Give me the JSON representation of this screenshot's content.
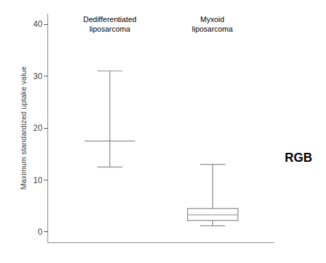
{
  "chart_data": {
    "type": "box",
    "categories": [
      "Dedifferentiated\nliposarcoma",
      "Myxoid\nliposarcoma"
    ],
    "boxes": [
      {
        "median": 17.5,
        "whisker_low": 12.5,
        "whisker_high": 31.0
      },
      {
        "q1": 2.2,
        "median": 3.3,
        "q3": 4.5,
        "whisker_low": 1.2,
        "whisker_high": 13.0
      }
    ],
    "color": "#888888",
    "ylabel": "Maximum standardized uptake value",
    "ylim": [
      -2,
      42
    ],
    "yticks": [
      0,
      10,
      20,
      30,
      40
    ],
    "grid": false,
    "tick_labels": "y",
    "annotations": [
      {
        "text": "RGB"
      }
    ]
  }
}
